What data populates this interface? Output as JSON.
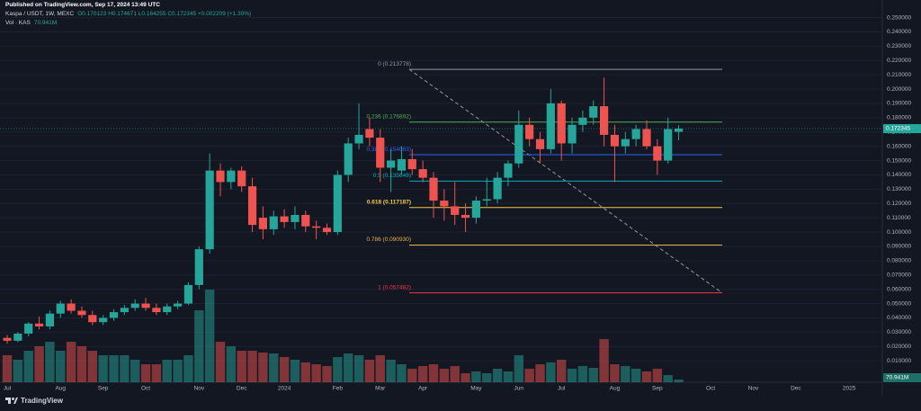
{
  "header": {
    "published": "Published on TradingView.com, Sep 17, 2024 13:49 UTC"
  },
  "chart_data": {
    "type": "candlestick",
    "title": "Kaspa / USDT, 1W, MEXC",
    "ohlc_legend": "O0.170123 H0.174671 L0.164255 C0.172345 +0.002209 (+1.30%)",
    "categories": [
      "Jul",
      null,
      null,
      null,
      null,
      "Aug",
      null,
      null,
      null,
      "Sep",
      null,
      null,
      null,
      "Oct",
      null,
      null,
      null,
      null,
      "Nov",
      null,
      null,
      null,
      "Dec",
      null,
      null,
      null,
      "2024",
      null,
      null,
      null,
      null,
      "Feb",
      null,
      null,
      null,
      "Mar",
      null,
      null,
      null,
      "Apr",
      null,
      null,
      null,
      null,
      "May",
      null,
      null,
      null,
      "Jun",
      null,
      null,
      null,
      "Jul",
      null,
      null,
      null,
      null,
      "Aug",
      null,
      null,
      null,
      "Sep",
      null,
      null,
      null,
      null,
      "Oct",
      null,
      null,
      null,
      "Nov",
      null,
      null,
      null,
      "Dec",
      null,
      null,
      null,
      null,
      "2025",
      null,
      null
    ],
    "open": [
      0.026,
      0.024,
      0.029,
      0.036,
      0.034,
      0.043,
      0.05,
      0.045,
      0.042,
      0.037,
      0.04,
      0.044,
      0.047,
      0.05,
      0.047,
      0.044,
      0.048,
      0.05,
      0.063,
      0.088,
      0.143,
      0.135,
      0.143,
      0.132,
      0.11,
      0.102,
      0.111,
      0.107,
      0.112,
      0.104,
      0.103,
      0.1,
      0.14,
      0.162,
      0.172,
      0.166,
      0.145,
      0.143,
      0.151,
      0.144,
      0.138,
      0.122,
      0.118,
      0.112,
      0.11,
      0.122,
      0.123,
      0.138,
      0.148,
      0.175,
      0.165,
      0.158,
      0.19,
      0.162,
      0.175,
      0.18,
      0.188,
      0.168,
      0.16,
      0.165,
      0.172,
      0.16,
      0.15,
      0.170123,
      null,
      null,
      null,
      null,
      null,
      null,
      null,
      null,
      null,
      null,
      null,
      null,
      null,
      null,
      null,
      null,
      null,
      null
    ],
    "high": [
      0.028,
      0.03,
      0.037,
      0.041,
      0.045,
      0.052,
      0.053,
      0.048,
      0.045,
      0.042,
      0.046,
      0.049,
      0.053,
      0.054,
      0.05,
      0.05,
      0.052,
      0.065,
      0.09,
      0.155,
      0.148,
      0.145,
      0.146,
      0.138,
      0.118,
      0.115,
      0.116,
      0.118,
      0.115,
      0.108,
      0.106,
      0.143,
      0.166,
      0.19,
      0.18,
      0.172,
      0.158,
      0.16,
      0.158,
      0.15,
      0.142,
      0.13,
      0.135,
      0.12,
      0.125,
      0.138,
      0.142,
      0.15,
      0.185,
      0.18,
      0.17,
      0.2,
      0.192,
      0.18,
      0.185,
      0.192,
      0.208,
      0.175,
      0.17,
      0.175,
      0.178,
      0.165,
      0.18,
      0.174671,
      null,
      null,
      null,
      null,
      null,
      null,
      null,
      null,
      null,
      null,
      null,
      null,
      null,
      null,
      null,
      null,
      null,
      null
    ],
    "low": [
      0.022,
      0.023,
      0.027,
      0.032,
      0.032,
      0.04,
      0.043,
      0.04,
      0.035,
      0.035,
      0.038,
      0.042,
      0.045,
      0.045,
      0.042,
      0.042,
      0.046,
      0.049,
      0.06,
      0.085,
      0.125,
      0.13,
      0.128,
      0.1,
      0.095,
      0.098,
      0.103,
      0.102,
      0.1,
      0.095,
      0.098,
      0.098,
      0.135,
      0.158,
      0.16,
      0.135,
      0.128,
      0.14,
      0.14,
      0.135,
      0.11,
      0.108,
      0.105,
      0.1,
      0.106,
      0.118,
      0.12,
      0.132,
      0.145,
      0.16,
      0.148,
      0.155,
      0.15,
      0.155,
      0.17,
      0.175,
      0.16,
      0.135,
      0.155,
      0.16,
      0.158,
      0.14,
      0.148,
      0.164255,
      null,
      null,
      null,
      null,
      null,
      null,
      null,
      null,
      null,
      null,
      null,
      null,
      null,
      null,
      null,
      null,
      null,
      null
    ],
    "close": [
      0.024,
      0.029,
      0.036,
      0.034,
      0.043,
      0.05,
      0.045,
      0.042,
      0.037,
      0.04,
      0.044,
      0.047,
      0.05,
      0.047,
      0.044,
      0.048,
      0.05,
      0.063,
      0.088,
      0.143,
      0.135,
      0.143,
      0.132,
      0.105,
      0.102,
      0.111,
      0.107,
      0.112,
      0.104,
      0.103,
      0.1,
      0.14,
      0.162,
      0.168,
      0.166,
      0.145,
      0.15,
      0.151,
      0.144,
      0.138,
      0.122,
      0.118,
      0.112,
      0.11,
      0.122,
      0.123,
      0.138,
      0.148,
      0.175,
      0.165,
      0.158,
      0.19,
      0.162,
      0.175,
      0.18,
      0.188,
      0.168,
      0.16,
      0.165,
      0.172,
      0.16,
      0.15,
      0.172,
      0.172345,
      null,
      null,
      null,
      null,
      null,
      null,
      null,
      null,
      null,
      null,
      null,
      null,
      null,
      null,
      null,
      null,
      null,
      null
    ],
    "up_color": "#26a69a",
    "down_color": "#ef5350",
    "ylim": [
      -0.005,
      0.256
    ],
    "yticks": [
      {
        "value": 0.01,
        "label": "0.010000"
      },
      {
        "value": 0.02,
        "label": "0.020000"
      },
      {
        "value": 0.03,
        "label": "0.030000"
      },
      {
        "value": 0.04,
        "label": "0.040000"
      },
      {
        "value": 0.05,
        "label": "0.050000"
      },
      {
        "value": 0.06,
        "label": "0.060000"
      },
      {
        "value": 0.07,
        "label": "0.070000"
      },
      {
        "value": 0.08,
        "label": "0.080000"
      },
      {
        "value": 0.09,
        "label": "0.090000"
      },
      {
        "value": 0.1,
        "label": "0.100000"
      },
      {
        "value": 0.11,
        "label": "0.110000"
      },
      {
        "value": 0.12,
        "label": "0.120000"
      },
      {
        "value": 0.13,
        "label": "0.130000"
      },
      {
        "value": 0.14,
        "label": "0.140000"
      },
      {
        "value": 0.15,
        "label": "0.150000"
      },
      {
        "value": 0.16,
        "label": "0.160000"
      },
      {
        "value": 0.17,
        "label": "0.170000"
      },
      {
        "value": 0.18,
        "label": "0.180000"
      },
      {
        "value": 0.19,
        "label": "0.190000"
      },
      {
        "value": 0.2,
        "label": "0.200000"
      },
      {
        "value": 0.21,
        "label": "0.210000"
      },
      {
        "value": 0.22,
        "label": "0.220000"
      },
      {
        "value": 0.23,
        "label": "0.230000"
      },
      {
        "value": 0.24,
        "label": "0.240000"
      },
      {
        "value": 0.25,
        "label": "0.250000"
      }
    ],
    "grid": true,
    "price_label": "0.172345",
    "volume": {
      "name": "Vol · KAS",
      "last_label": "70.941M",
      "ylim": [
        0,
        2500
      ],
      "values": [
        714,
        595,
        833,
        952,
        1071,
        833,
        1071,
        952,
        833,
        714,
        714,
        714,
        595,
        476,
        476,
        595,
        595,
        714,
        1904,
        2451,
        1071,
        952,
        833,
        833,
        785,
        762,
        666,
        595,
        524,
        476,
        428,
        666,
        762,
        714,
        595,
        714,
        595,
        476,
        357,
        428,
        476,
        357,
        428,
        238,
        286,
        238,
        357,
        286,
        714,
        357,
        476,
        524,
        595,
        357,
        428,
        381,
        1142,
        476,
        428,
        357,
        286,
        357,
        190,
        70.941,
        null,
        null,
        null,
        null,
        null,
        null,
        null,
        null,
        null,
        null,
        null,
        null,
        null,
        null,
        null,
        null,
        null,
        null
      ]
    },
    "fib_levels": [
      {
        "value": 0.213778,
        "label": "0 (0.213778)",
        "color": "#9598a1"
      },
      {
        "value": 0.176892,
        "label": "0.236 (0.176892)",
        "color": "#4caf50"
      },
      {
        "value": 0.154083,
        "label": "0.382 (0.154083)",
        "color": "#2962ff"
      },
      {
        "value": 0.135648,
        "label": "0.5 (0.135648)",
        "color": "#00acc1"
      },
      {
        "value": 0.117187,
        "label": "0.618 (0.117187)",
        "color": "#f7c948"
      },
      {
        "value": 0.09093,
        "label": "0.786 (0.090930)",
        "color": "#e8b34b"
      },
      {
        "value": 0.057482,
        "label": "1 (0.057482)",
        "color": "#f23645"
      }
    ]
  },
  "footer": {
    "brand": "TradingView"
  }
}
